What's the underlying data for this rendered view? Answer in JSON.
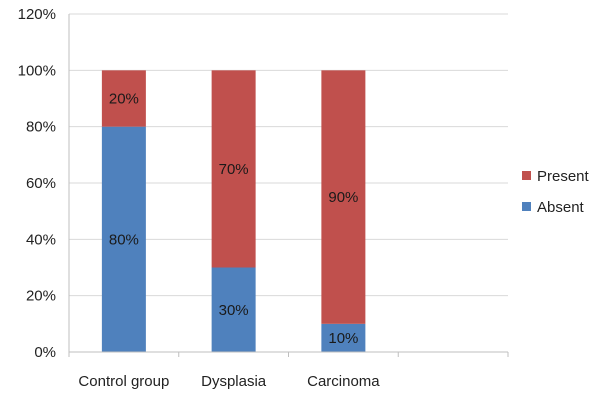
{
  "colors": {
    "present": "#c0504d",
    "absent": "#4f81bd",
    "gridline": "#d9d9d9",
    "axis": "#bfbfbf"
  },
  "chart_data": {
    "type": "bar",
    "stacked": true,
    "categories": [
      "Control group",
      "Dysplasia",
      "Carcinoma"
    ],
    "series": [
      {
        "name": "Absent",
        "values": [
          80,
          30,
          10
        ],
        "labels": [
          "80%",
          "30%",
          "10%"
        ],
        "color": "#4f81bd"
      },
      {
        "name": "Present",
        "values": [
          20,
          70,
          90
        ],
        "labels": [
          "20%",
          "70%",
          "90%"
        ],
        "color": "#c0504d"
      }
    ],
    "ylim": [
      0,
      120
    ],
    "yticks": [
      0,
      20,
      40,
      60,
      80,
      100,
      120
    ],
    "ytick_labels": [
      "0%",
      "20%",
      "40%",
      "60%",
      "80%",
      "100%",
      "120%"
    ],
    "grid": true,
    "legend": {
      "position": "right",
      "items": [
        {
          "name": "Present",
          "color": "#c0504d"
        },
        {
          "name": "Absent",
          "color": "#4f81bd"
        }
      ]
    }
  }
}
